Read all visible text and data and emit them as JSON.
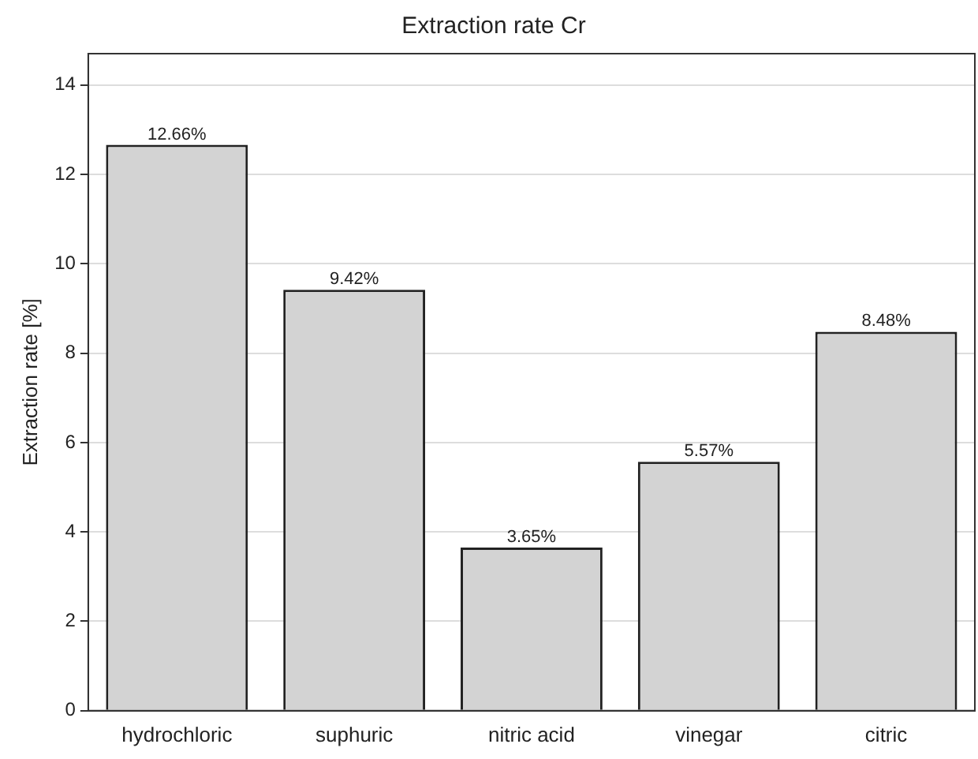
{
  "chart_data": {
    "type": "bar",
    "title": "Extraction rate Cr",
    "ylabel": "Extraction rate [%]",
    "categories": [
      "hydrochloric",
      "suphuric",
      "nitric acid",
      "vinegar",
      "citric"
    ],
    "values": [
      12.66,
      9.42,
      3.65,
      5.57,
      8.48
    ],
    "value_labels": [
      "12.66%",
      "9.42%",
      "3.65%",
      "5.57%",
      "8.48%"
    ],
    "color": "#d3d3d3",
    "ylim": [
      0,
      14.7
    ],
    "yticks": [
      0,
      2,
      4,
      6,
      8,
      10,
      12,
      14
    ],
    "grid": "y",
    "legend": false
  }
}
